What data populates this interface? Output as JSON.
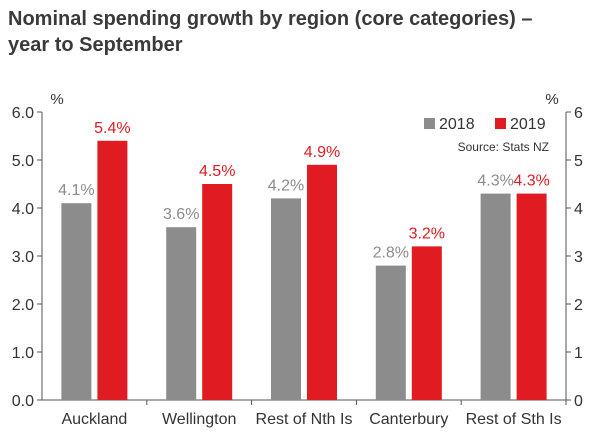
{
  "title_line1": "Nominal spending growth by region (core categories) –",
  "title_line2": "year to September",
  "chart_data": {
    "type": "bar",
    "title": "Nominal spending growth by region (core categories) – year to September",
    "categories": [
      "Auckland",
      "Wellington",
      "Rest of Nth Is",
      "Canterbury",
      "Rest of Sth Is"
    ],
    "series": [
      {
        "name": "2018",
        "values": [
          4.1,
          3.6,
          4.2,
          2.8,
          4.3
        ],
        "labels": [
          "4.1%",
          "3.6%",
          "4.2%",
          "2.8%",
          "4.3%"
        ],
        "color": "#8c8c8c",
        "label_color": "#8c8c8c"
      },
      {
        "name": "2019",
        "values": [
          5.4,
          4.5,
          4.9,
          3.2,
          4.3
        ],
        "labels": [
          "5.4%",
          "4.5%",
          "4.9%",
          "3.2%",
          "4.3%"
        ],
        "color": "#e01b22",
        "label_color": "#e01b22"
      }
    ],
    "ylim": [
      0,
      6
    ],
    "y_left_ticks": [
      "0.0",
      "1.0",
      "2.0",
      "3.0",
      "4.0",
      "5.0",
      "6.0"
    ],
    "y_right_ticks": [
      "0",
      "1",
      "2",
      "3",
      "4",
      "5",
      "6"
    ],
    "y_unit_left": "%",
    "y_unit_right": "%",
    "source": "Source: Stats NZ",
    "legend_position": "top-right",
    "grid": false
  }
}
